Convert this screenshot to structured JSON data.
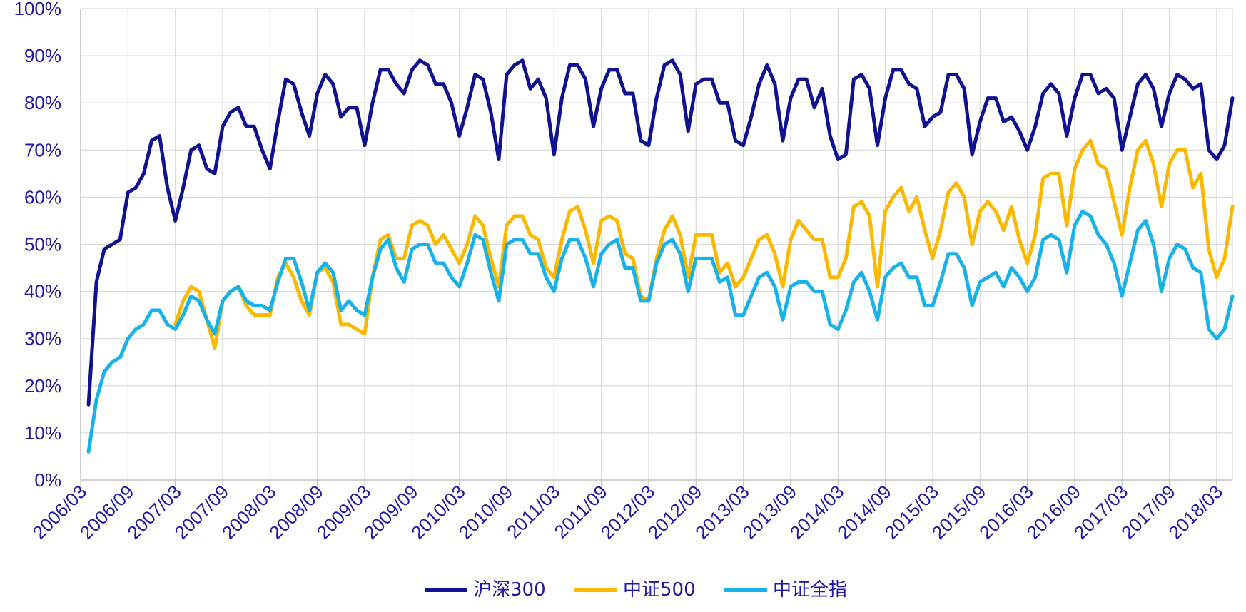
{
  "chart_data": {
    "type": "line",
    "title": "",
    "xlabel": "",
    "ylabel": "",
    "ylim": [
      0,
      100
    ],
    "y_ticks": [
      "0%",
      "10%",
      "20%",
      "30%",
      "40%",
      "50%",
      "60%",
      "70%",
      "80%",
      "90%",
      "100%"
    ],
    "x_ticks": [
      "2006/03",
      "2006/09",
      "2007/03",
      "2007/09",
      "2008/03",
      "2008/09",
      "2009/03",
      "2009/09",
      "2010/03",
      "2010/09",
      "2011/03",
      "2011/09",
      "2012/03",
      "2012/09",
      "2013/03",
      "2013/09",
      "2014/03",
      "2014/09",
      "2015/03",
      "2015/09",
      "2016/03",
      "2016/09",
      "2017/03",
      "2017/09",
      "2018/03"
    ],
    "x_start": "2006/03",
    "x_months": 146,
    "grid": true,
    "legend_position": "bottom",
    "series": [
      {
        "name": "沪深300",
        "color": "#10128f",
        "start_index": 1,
        "values": [
          16,
          42,
          49,
          50,
          51,
          61,
          62,
          65,
          72,
          73,
          62,
          55,
          62,
          70,
          71,
          66,
          65,
          75,
          78,
          79,
          75,
          75,
          70,
          66,
          76,
          85,
          84,
          78,
          73,
          82,
          86,
          84,
          77,
          79,
          79,
          71,
          80,
          87,
          87,
          84,
          82,
          87,
          89,
          88,
          84,
          84,
          80,
          73,
          79,
          86,
          85,
          78,
          68,
          86,
          88,
          89,
          83,
          85,
          81,
          69,
          81,
          88,
          88,
          85,
          75,
          83,
          87,
          87,
          82,
          82,
          72,
          71,
          81,
          88,
          89,
          86,
          74,
          84,
          85,
          85,
          80,
          80,
          72,
          71,
          77,
          84,
          88,
          84,
          72,
          81,
          85,
          85,
          79,
          83,
          73,
          68,
          69,
          85,
          86,
          83,
          71,
          81,
          87,
          87,
          84,
          83,
          75,
          77,
          78,
          86,
          86,
          83,
          69,
          76,
          81,
          81,
          76,
          77,
          74,
          70,
          75,
          82,
          84,
          82,
          73,
          81,
          86,
          86,
          82,
          83,
          81,
          70,
          77,
          84,
          86,
          83,
          75,
          82,
          86,
          85,
          83,
          84,
          70,
          68,
          71,
          81
        ]
      },
      {
        "name": "中证500",
        "color": "#fbb800",
        "start_index": 12,
        "values": [
          33,
          38,
          41,
          40,
          34,
          28,
          38,
          40,
          41,
          37,
          35,
          35,
          35,
          43,
          46,
          43,
          38,
          35,
          44,
          45,
          42,
          33,
          33,
          32,
          31,
          43,
          51,
          52,
          47,
          47,
          54,
          55,
          54,
          50,
          52,
          49,
          46,
          50,
          56,
          54,
          47,
          41,
          54,
          56,
          56,
          52,
          51,
          45,
          43,
          51,
          57,
          58,
          53,
          46,
          55,
          56,
          55,
          48,
          47,
          39,
          38,
          47,
          53,
          56,
          52,
          43,
          52,
          52,
          52,
          44,
          46,
          41,
          43,
          47,
          51,
          52,
          48,
          41,
          51,
          55,
          53,
          51,
          51,
          43,
          43,
          47,
          58,
          59,
          56,
          41,
          57,
          60,
          62,
          57,
          60,
          53,
          47,
          53,
          61,
          63,
          60,
          50,
          57,
          59,
          57,
          53,
          58,
          51,
          46,
          52,
          64,
          65,
          65,
          54,
          66,
          70,
          72,
          67,
          66,
          59,
          52,
          62,
          70,
          72,
          67,
          58,
          67,
          70,
          70,
          62,
          65,
          49,
          43,
          47,
          58
        ]
      },
      {
        "name": "中证全指",
        "color": "#18b2e8",
        "start_index": 1,
        "values": [
          6,
          17,
          23,
          25,
          26,
          30,
          32,
          33,
          36,
          36,
          33,
          32,
          35,
          39,
          38,
          34,
          31,
          38,
          40,
          41,
          38,
          37,
          37,
          36,
          42,
          47,
          47,
          42,
          36,
          44,
          46,
          44,
          36,
          38,
          36,
          35,
          43,
          49,
          51,
          45,
          42,
          49,
          50,
          50,
          46,
          46,
          43,
          41,
          46,
          52,
          51,
          44,
          38,
          50,
          51,
          51,
          48,
          48,
          43,
          40,
          47,
          51,
          51,
          47,
          41,
          48,
          50,
          51,
          45,
          45,
          38,
          38,
          46,
          50,
          51,
          48,
          40,
          47,
          47,
          47,
          42,
          43,
          35,
          35,
          39,
          43,
          44,
          41,
          34,
          41,
          42,
          42,
          40,
          40,
          33,
          32,
          36,
          42,
          44,
          40,
          34,
          43,
          45,
          46,
          43,
          43,
          37,
          37,
          42,
          48,
          48,
          45,
          37,
          42,
          43,
          44,
          41,
          45,
          43,
          40,
          43,
          51,
          52,
          51,
          44,
          54,
          57,
          56,
          52,
          50,
          46,
          39,
          46,
          53,
          55,
          50,
          40,
          47,
          50,
          49,
          45,
          44,
          32,
          30,
          32,
          39
        ]
      }
    ]
  }
}
